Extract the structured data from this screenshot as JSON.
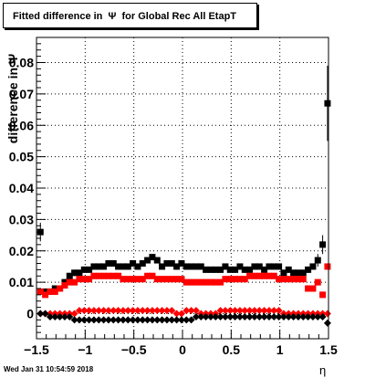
{
  "title": "Fitted difference in  Ψ  for Global Rec All EtapT",
  "footer": "Wed Jan 31 10:54:59 2018",
  "chart_data": {
    "type": "scatter",
    "title": "Fitted difference in  Ψ  for Global Rec All EtapT",
    "xlabel": "η",
    "ylabel": "difference in Ψ",
    "xlim": [
      -1.5,
      1.5
    ],
    "ylim": [
      -0.008,
      0.088
    ],
    "grid": true,
    "x_ticks": [
      -1.5,
      -1,
      -0.5,
      0,
      0.5,
      1,
      1.5
    ],
    "x_tick_labels": [
      "−1.5",
      "−1",
      "−0.5",
      "0",
      "0.5",
      "1",
      "1.5"
    ],
    "y_ticks": [
      0,
      0.01,
      0.02,
      0.03,
      0.04,
      0.05,
      0.06,
      0.07,
      0.08
    ],
    "y_tick_labels": [
      "0",
      "0.01",
      "0.02",
      "0.03",
      "0.04",
      "0.05",
      "0.06",
      "0.07",
      "0.08"
    ],
    "x": [
      -1.46,
      -1.41,
      -1.36,
      -1.31,
      -1.26,
      -1.21,
      -1.16,
      -1.11,
      -1.06,
      -1.01,
      -0.96,
      -0.91,
      -0.86,
      -0.81,
      -0.76,
      -0.71,
      -0.66,
      -0.61,
      -0.56,
      -0.51,
      -0.46,
      -0.41,
      -0.36,
      -0.31,
      -0.26,
      -0.21,
      -0.16,
      -0.11,
      -0.06,
      -0.01,
      0.04,
      0.09,
      0.14,
      0.19,
      0.24,
      0.29,
      0.34,
      0.39,
      0.44,
      0.49,
      0.54,
      0.59,
      0.64,
      0.69,
      0.74,
      0.79,
      0.84,
      0.89,
      0.94,
      0.99,
      1.04,
      1.09,
      1.14,
      1.19,
      1.24,
      1.29,
      1.34,
      1.39,
      1.44,
      1.49
    ],
    "series": [
      {
        "color": "#000000",
        "marker": "square",
        "values": [
          0.026,
          0.007,
          0.007,
          0.008,
          0.008,
          0.01,
          0.012,
          0.013,
          0.013,
          0.014,
          0.014,
          0.015,
          0.015,
          0.015,
          0.016,
          0.016,
          0.015,
          0.015,
          0.015,
          0.016,
          0.015,
          0.016,
          0.017,
          0.018,
          0.017,
          0.015,
          0.016,
          0.016,
          0.015,
          0.016,
          0.015,
          0.015,
          0.015,
          0.015,
          0.014,
          0.014,
          0.014,
          0.014,
          0.015,
          0.014,
          0.014,
          0.015,
          0.014,
          0.014,
          0.015,
          0.015,
          0.014,
          0.015,
          0.015,
          0.015,
          0.013,
          0.014,
          0.013,
          0.013,
          0.013,
          0.014,
          0.015,
          0.017,
          0.022,
          0.067
        ],
        "err": [
          0.003,
          0.001,
          0.001,
          0.001,
          0.001,
          0.001,
          0.001,
          0.001,
          0.001,
          0.001,
          0.001,
          0.001,
          0.001,
          0.001,
          0.001,
          0.001,
          0.001,
          0.001,
          0.001,
          0.001,
          0.001,
          0.001,
          0.001,
          0.001,
          0.001,
          0.001,
          0.001,
          0.001,
          0.001,
          0.001,
          0.001,
          0.001,
          0.001,
          0.001,
          0.001,
          0.001,
          0.001,
          0.001,
          0.001,
          0.001,
          0.001,
          0.001,
          0.001,
          0.001,
          0.001,
          0.001,
          0.001,
          0.001,
          0.001,
          0.001,
          0.001,
          0.001,
          0.001,
          0.001,
          0.001,
          0.001,
          0.001,
          0.002,
          0.003,
          0.012
        ]
      },
      {
        "color": "#ff0000",
        "marker": "square",
        "values": [
          0.007,
          0.006,
          0.007,
          0.007,
          0.008,
          0.009,
          0.01,
          0.01,
          0.011,
          0.011,
          0.011,
          0.012,
          0.012,
          0.012,
          0.012,
          0.012,
          0.012,
          0.011,
          0.011,
          0.011,
          0.011,
          0.011,
          0.012,
          0.012,
          0.011,
          0.011,
          0.011,
          0.011,
          0.011,
          0.011,
          0.01,
          0.01,
          0.01,
          0.01,
          0.01,
          0.01,
          0.01,
          0.01,
          0.011,
          0.011,
          0.011,
          0.011,
          0.011,
          0.012,
          0.012,
          0.012,
          0.012,
          0.012,
          0.012,
          0.011,
          0.011,
          0.011,
          0.011,
          0.011,
          0.011,
          0.008,
          0.008,
          0.01,
          0.006,
          0.015
        ],
        "err": [
          0.001,
          0.001,
          0.001,
          0.001,
          0.001,
          0.001,
          0.001,
          0.001,
          0.001,
          0.001,
          0.001,
          0.001,
          0.001,
          0.001,
          0.001,
          0.001,
          0.001,
          0.001,
          0.001,
          0.001,
          0.001,
          0.001,
          0.001,
          0.001,
          0.001,
          0.001,
          0.001,
          0.001,
          0.001,
          0.001,
          0.001,
          0.001,
          0.001,
          0.001,
          0.001,
          0.001,
          0.001,
          0.001,
          0.001,
          0.001,
          0.001,
          0.001,
          0.001,
          0.001,
          0.001,
          0.001,
          0.001,
          0.001,
          0.001,
          0.001,
          0.001,
          0.001,
          0.001,
          0.001,
          0.001,
          0.001,
          0.001,
          0.001,
          0.001,
          0.001
        ]
      },
      {
        "color": "#ff0000",
        "marker": "diamond",
        "values": [
          0.0,
          0.0,
          0.0,
          0.0,
          0.0,
          0.0,
          0.0,
          0.0,
          0.001,
          0.001,
          0.001,
          0.001,
          0.001,
          0.001,
          0.001,
          0.001,
          0.001,
          0.001,
          0.001,
          0.001,
          0.001,
          0.001,
          0.001,
          0.001,
          0.001,
          0.001,
          0.001,
          0.001,
          0.0,
          0.0,
          0.001,
          0.001,
          0.001,
          0.0,
          0.0,
          0.0,
          0.0,
          0.001,
          0.001,
          0.001,
          0.001,
          0.001,
          0.001,
          0.001,
          0.001,
          0.001,
          0.001,
          0.001,
          0.001,
          0.001,
          0.0,
          0.0,
          0.0,
          0.0,
          0.0,
          0.0,
          0.0,
          0.0,
          0.0,
          0.0
        ],
        "err": []
      },
      {
        "color": "#000000",
        "marker": "diamond",
        "values": [
          0.0,
          0.0,
          -0.001,
          -0.001,
          -0.001,
          -0.001,
          -0.001,
          -0.002,
          -0.002,
          -0.002,
          -0.002,
          -0.002,
          -0.002,
          -0.002,
          -0.002,
          -0.002,
          -0.002,
          -0.002,
          -0.002,
          -0.002,
          -0.002,
          -0.002,
          -0.002,
          -0.002,
          -0.002,
          -0.002,
          -0.002,
          -0.002,
          -0.002,
          -0.002,
          -0.002,
          -0.002,
          -0.001,
          -0.001,
          -0.001,
          -0.001,
          -0.001,
          -0.001,
          -0.001,
          -0.001,
          -0.001,
          -0.001,
          -0.001,
          -0.001,
          -0.001,
          -0.001,
          -0.001,
          -0.001,
          -0.001,
          -0.001,
          -0.001,
          -0.001,
          -0.001,
          -0.001,
          -0.001,
          -0.001,
          -0.001,
          -0.001,
          -0.001,
          -0.003
        ],
        "err": []
      }
    ]
  }
}
